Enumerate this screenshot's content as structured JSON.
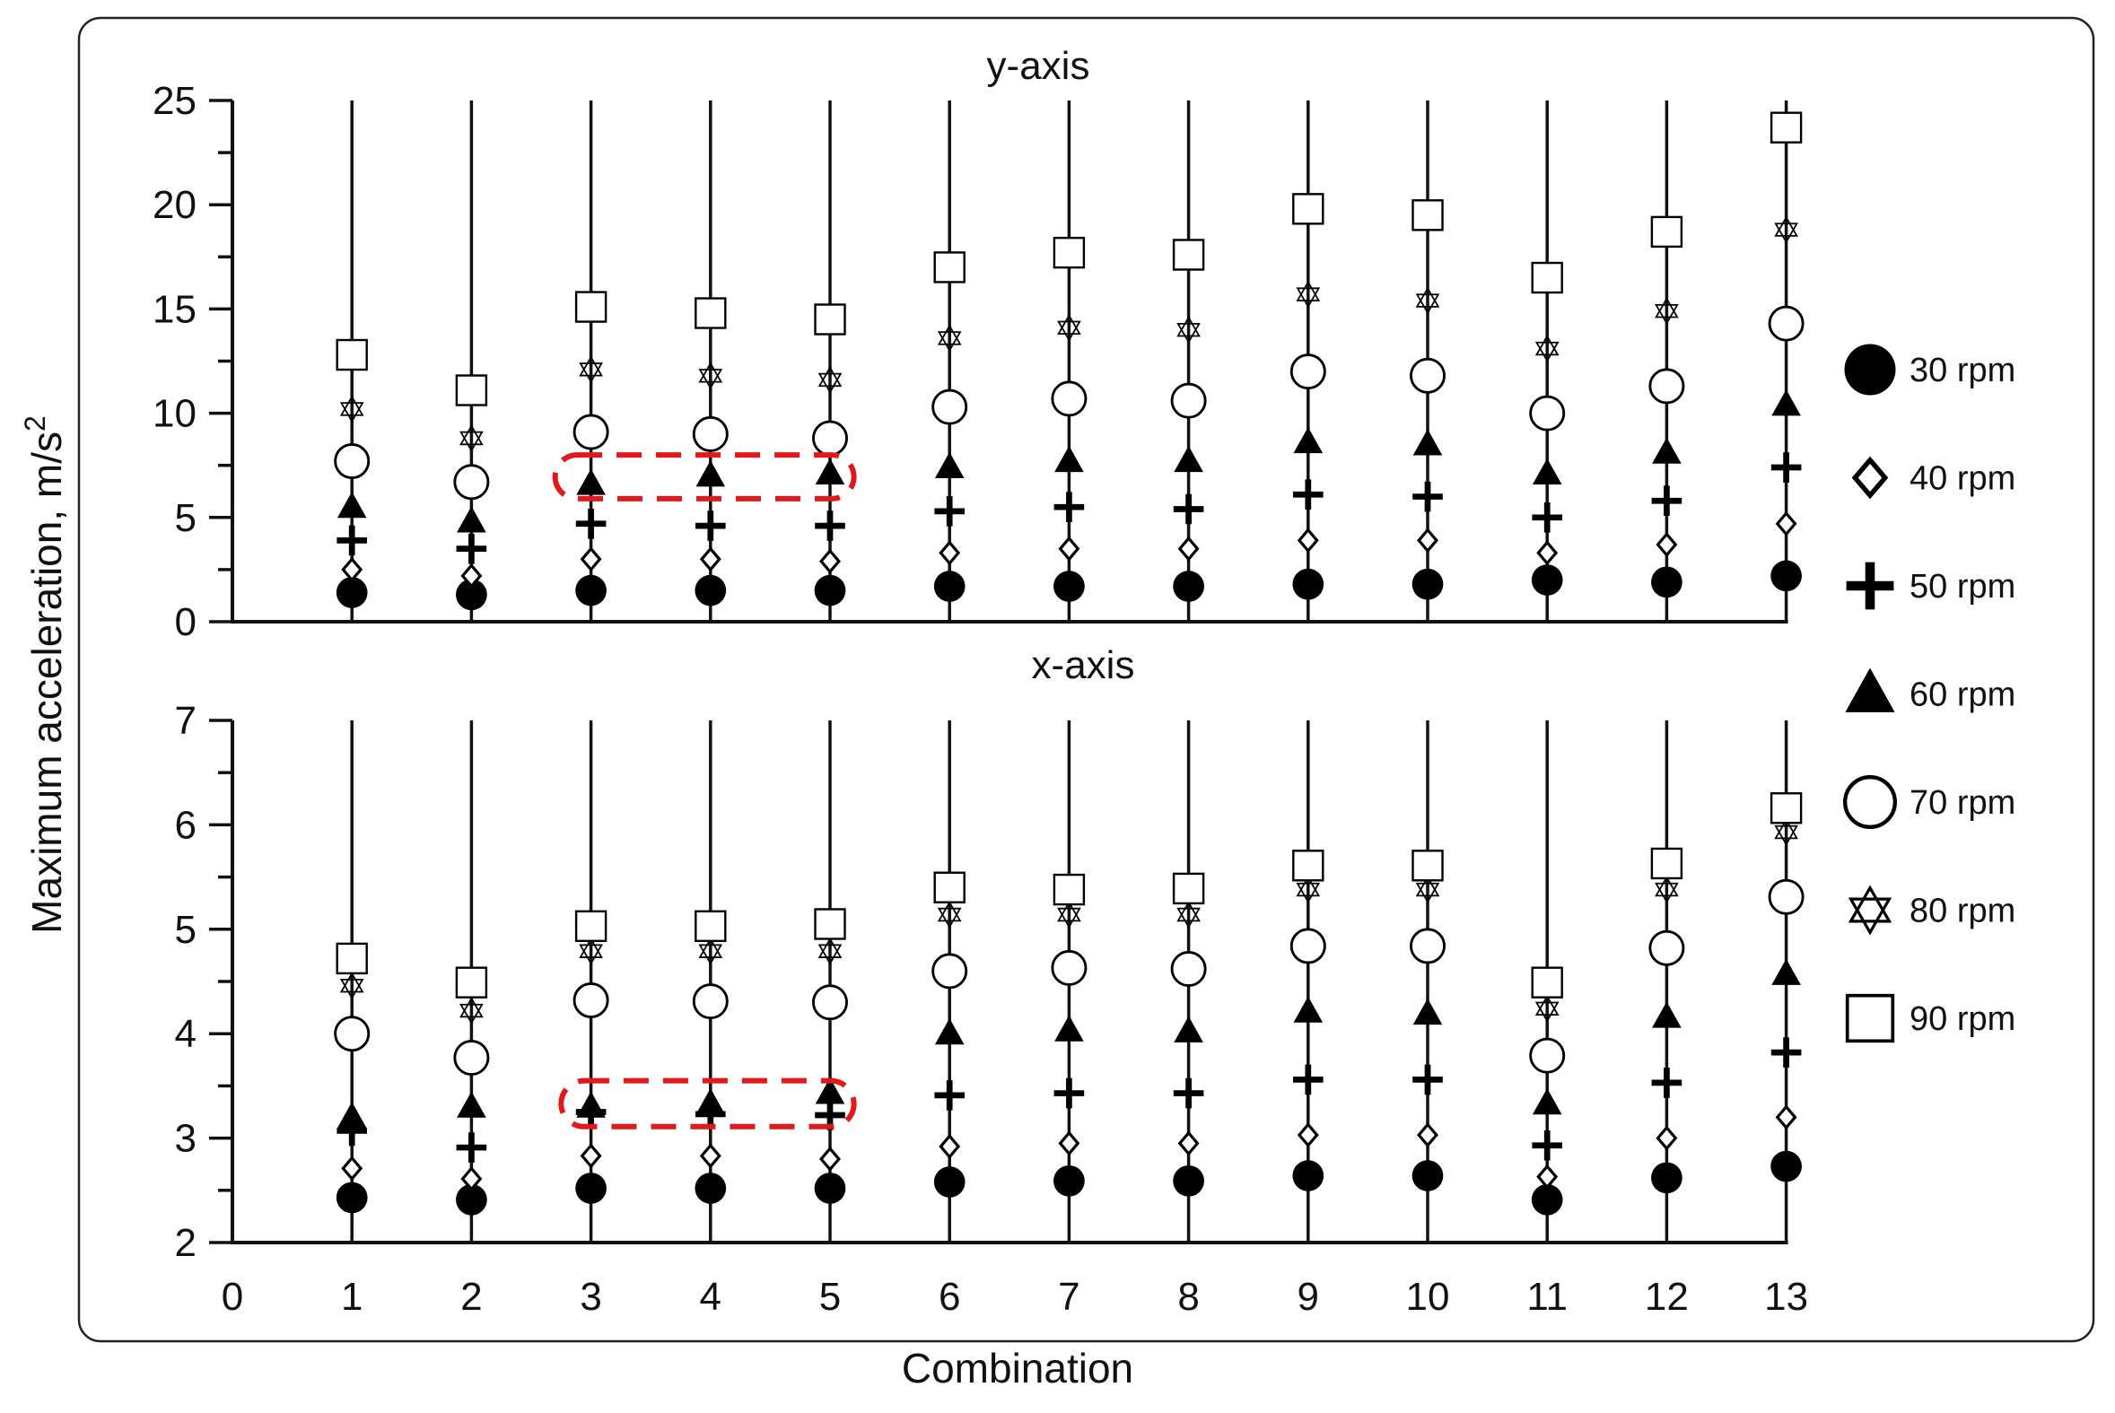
{
  "chart_data": {
    "type": "scatter",
    "xlabel": "Combination",
    "ylabel": "Maximum acceleration, m/s",
    "ylabel_superscript": "2",
    "x_ticks": [
      "0",
      "1",
      "2",
      "3",
      "4",
      "5",
      "6",
      "7",
      "8",
      "9",
      "10",
      "11",
      "12",
      "13"
    ],
    "x_range": [
      0,
      13
    ],
    "legend": [
      {
        "label": "30 rpm",
        "marker": "filled-circle"
      },
      {
        "label": "40 rpm",
        "marker": "diamond"
      },
      {
        "label": "50 rpm",
        "marker": "plus"
      },
      {
        "label": "60 rpm",
        "marker": "filled-triangle"
      },
      {
        "label": "70 rpm",
        "marker": "open-circle"
      },
      {
        "label": "80 rpm",
        "marker": "star-of-david"
      },
      {
        "label": "90 rpm",
        "marker": "open-square"
      }
    ],
    "highlight_color": "#e0191b",
    "panels": [
      {
        "title": "y-axis",
        "ylim": [
          0,
          25
        ],
        "y_ticks": [
          "0",
          "5",
          "10",
          "15",
          "20",
          "25"
        ],
        "y_tick_values": [
          0,
          5,
          10,
          15,
          20,
          25
        ],
        "minor_step": 2.5,
        "x": [
          1,
          2,
          3,
          4,
          5,
          6,
          7,
          8,
          9,
          10,
          11,
          12,
          13
        ],
        "series": [
          {
            "name": "30 rpm",
            "values": [
              1.4,
              1.3,
              1.5,
              1.5,
              1.5,
              1.7,
              1.7,
              1.7,
              1.8,
              1.8,
              2.0,
              1.9,
              2.2
            ]
          },
          {
            "name": "40 rpm",
            "values": [
              2.5,
              2.2,
              3.0,
              3.0,
              2.9,
              3.3,
              3.5,
              3.5,
              3.9,
              3.9,
              3.3,
              3.7,
              4.7
            ]
          },
          {
            "name": "50 rpm",
            "values": [
              3.9,
              3.5,
              4.7,
              4.6,
              4.6,
              5.3,
              5.5,
              5.4,
              6.1,
              6.0,
              5.0,
              5.8,
              7.4
            ]
          },
          {
            "name": "60 rpm",
            "values": [
              5.5,
              4.8,
              6.6,
              7.0,
              7.1,
              7.4,
              7.7,
              7.7,
              8.6,
              8.5,
              7.1,
              8.1,
              10.4
            ]
          },
          {
            "name": "70 rpm",
            "values": [
              7.7,
              6.7,
              9.1,
              9.0,
              8.8,
              10.3,
              10.7,
              10.6,
              12.0,
              11.8,
              10.0,
              11.3,
              14.3
            ]
          },
          {
            "name": "80 rpm",
            "values": [
              10.2,
              8.8,
              12.1,
              11.8,
              11.6,
              13.6,
              14.1,
              14.0,
              15.7,
              15.4,
              13.1,
              14.9,
              18.8
            ]
          },
          {
            "name": "90 rpm",
            "values": [
              12.8,
              11.1,
              15.1,
              14.8,
              14.5,
              17.0,
              17.7,
              17.6,
              19.8,
              19.5,
              16.5,
              18.7,
              23.7
            ]
          }
        ],
        "highlight": {
          "x_from": 2.7,
          "x_to": 5.2,
          "y_from": 5.9,
          "y_to": 8.0
        }
      },
      {
        "title": "x-axis",
        "ylim": [
          2,
          7
        ],
        "y_ticks": [
          "2",
          "3",
          "4",
          "5",
          "6",
          "7"
        ],
        "y_tick_values": [
          2,
          3,
          4,
          5,
          6,
          7
        ],
        "minor_step": 0.5,
        "x": [
          1,
          2,
          3,
          4,
          5,
          6,
          7,
          8,
          9,
          10,
          11,
          12,
          13
        ],
        "series": [
          {
            "name": "30 rpm",
            "values": [
              2.43,
              2.41,
              2.52,
              2.52,
              2.52,
              2.58,
              2.59,
              2.59,
              2.64,
              2.64,
              2.41,
              2.62,
              2.73
            ]
          },
          {
            "name": "40 rpm",
            "values": [
              2.71,
              2.61,
              2.83,
              2.83,
              2.8,
              2.92,
              2.95,
              2.95,
              3.03,
              3.03,
              2.63,
              3.0,
              3.2
            ]
          },
          {
            "name": "50 rpm",
            "values": [
              3.07,
              2.91,
              3.25,
              3.23,
              3.22,
              3.41,
              3.43,
              3.43,
              3.56,
              3.56,
              2.93,
              3.53,
              3.82
            ]
          },
          {
            "name": "60 rpm",
            "values": [
              3.2,
              3.3,
              3.3,
              3.33,
              3.43,
              4.0,
              4.03,
              4.02,
              4.21,
              4.19,
              3.33,
              4.16,
              4.57
            ]
          },
          {
            "name": "70 rpm",
            "values": [
              4.0,
              3.77,
              4.32,
              4.31,
              4.3,
              4.6,
              4.63,
              4.62,
              4.84,
              4.84,
              3.79,
              4.82,
              5.31
            ]
          },
          {
            "name": "80 rpm",
            "values": [
              4.46,
              4.22,
              4.79,
              4.79,
              4.79,
              5.14,
              5.14,
              5.14,
              5.38,
              5.38,
              4.24,
              5.38,
              5.93
            ]
          },
          {
            "name": "90 rpm",
            "values": [
              4.72,
              4.49,
              5.03,
              5.03,
              5.05,
              5.4,
              5.38,
              5.39,
              5.61,
              5.61,
              4.49,
              5.63,
              6.16
            ]
          }
        ],
        "highlight": {
          "x_from": 2.75,
          "x_to": 5.2,
          "y_from": 3.11,
          "y_to": 3.55
        }
      }
    ]
  }
}
